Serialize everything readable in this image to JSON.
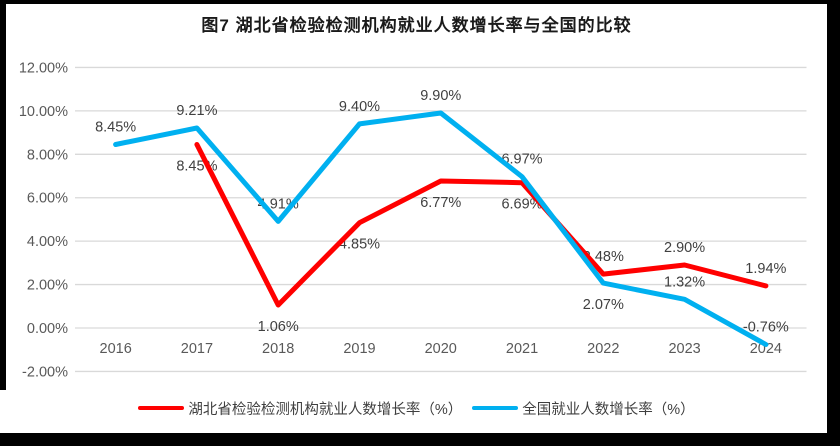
{
  "title": "图7 湖北省检验检测机构就业人数增长率与全国的比较",
  "chart_data": {
    "type": "line",
    "title": "图7 湖北省检验检测机构就业人数增长率与全国的比较",
    "categories": [
      "2016",
      "2017",
      "2018",
      "2019",
      "2020",
      "2021",
      "2022",
      "2023",
      "2024"
    ],
    "series": [
      {
        "name": "湖北省检验检测机构就业人数增长率（%）",
        "color": "#ff0000",
        "values": [
          null,
          8.45,
          1.06,
          4.85,
          6.77,
          6.69,
          2.48,
          2.9,
          1.94
        ],
        "labels": [
          "",
          "8.45%",
          "1.06%",
          "4.85%",
          "6.77%",
          "6.69%",
          "2.48%",
          "2.90%",
          "1.94%"
        ],
        "label_sides": [
          "",
          "below",
          "below",
          "below",
          "below",
          "below",
          "above",
          "above",
          "above"
        ]
      },
      {
        "name": "全国就业人数增长率（%）",
        "color": "#00b0f0",
        "values": [
          8.45,
          9.21,
          4.91,
          9.4,
          9.9,
          6.97,
          2.07,
          1.32,
          -0.76
        ],
        "labels": [
          "8.45%",
          "9.21%",
          "4.91%",
          "9.40%",
          "9.90%",
          "6.97%",
          "2.07%",
          "1.32%",
          "-0.76%"
        ],
        "label_sides": [
          "above",
          "above",
          "above",
          "above",
          "above",
          "above",
          "below",
          "above",
          "above"
        ]
      }
    ],
    "y_axis": {
      "min": -2,
      "max": 12,
      "step": 2,
      "tick_labels": [
        "12.00%",
        "10.00%",
        "8.00%",
        "6.00%",
        "4.00%",
        "2.00%",
        "0.00%",
        "-2.00%"
      ]
    },
    "grid": true,
    "legend_position": "bottom",
    "xlabel": "",
    "ylabel": ""
  },
  "legend": {
    "items": [
      {
        "label": "湖北省检验检测机构就业人数增长率（%）",
        "color": "#ff0000"
      },
      {
        "label": "全国就业人数增长率（%）",
        "color": "#00b0f0"
      }
    ]
  },
  "colors": {
    "grid": "#d9d9d9",
    "tick_text": "#595959",
    "data_label_text": "#404040",
    "frame": "#000000"
  }
}
